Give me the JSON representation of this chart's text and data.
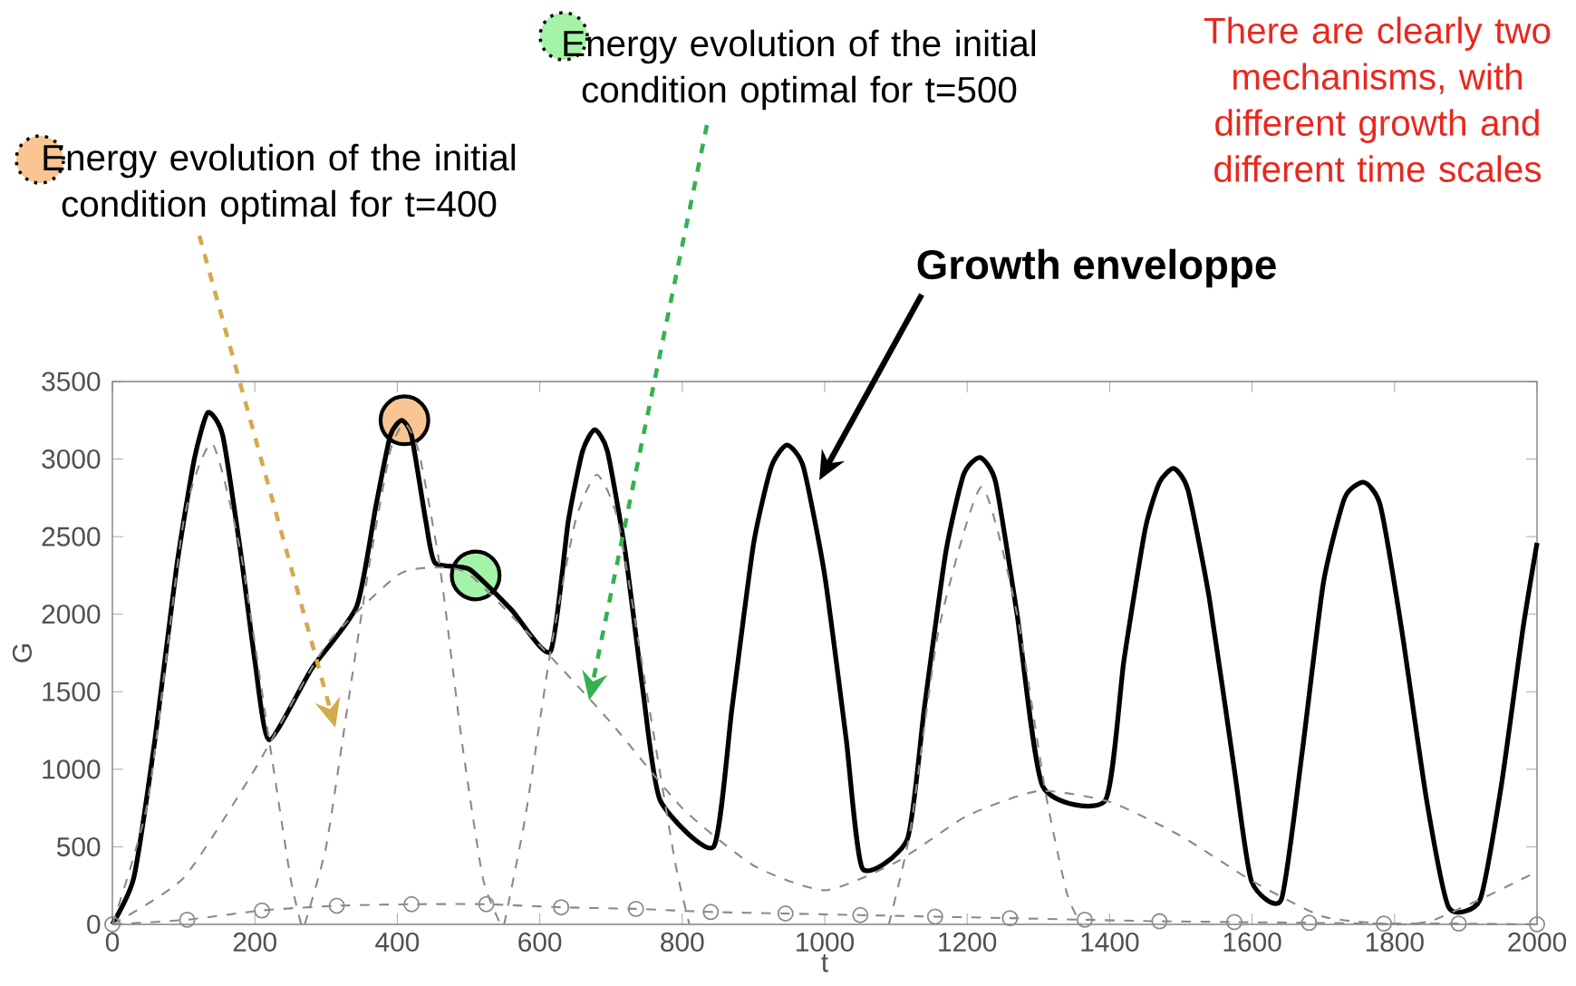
{
  "chart_data": {
    "type": "line",
    "xlabel": "t",
    "ylabel": "G",
    "xlim": [
      0,
      2000
    ],
    "ylim": [
      0,
      3500
    ],
    "xticks": [
      0,
      200,
      400,
      600,
      800,
      1000,
      1200,
      1400,
      1600,
      1800,
      2000
    ],
    "yticks": [
      0,
      500,
      1000,
      1500,
      2000,
      2500,
      3000,
      3500
    ],
    "grid": false,
    "series": [
      {
        "color": "#000000",
        "line_style": "solid",
        "x": [
          0,
          30,
          60,
          90,
          115,
          134,
          155,
          180,
          200,
          220,
          280,
          343,
          370,
          390,
          406,
          420,
          440,
          453,
          501,
          560,
          615,
          640,
          660,
          677,
          695,
          720,
          745,
          769,
          844,
          870,
          900,
          925,
          947,
          970,
          1000,
          1030,
          1053,
          1116,
          1140,
          1170,
          1195,
          1218,
          1240,
          1270,
          1306,
          1394,
          1420,
          1450,
          1470,
          1490,
          1510,
          1540,
          1575,
          1599,
          1641,
          1670,
          1700,
          1730,
          1757,
          1780,
          1810,
          1845,
          1876,
          1920,
          1950,
          1980,
          2000
        ],
        "values": [
          0,
          300,
          1200,
          2300,
          3000,
          3300,
          3150,
          2400,
          1700,
          1190,
          1650,
          2050,
          2700,
          3150,
          3250,
          3150,
          2600,
          2330,
          2290,
          2030,
          1760,
          2600,
          3050,
          3190,
          3050,
          2400,
          1500,
          800,
          500,
          1400,
          2450,
          2950,
          3090,
          2950,
          2250,
          1200,
          360,
          550,
          1400,
          2400,
          2900,
          3010,
          2850,
          2000,
          890,
          800,
          1700,
          2550,
          2850,
          2940,
          2800,
          2100,
          1000,
          280,
          160,
          1100,
          2200,
          2750,
          2850,
          2700,
          1900,
          800,
          110,
          160,
          900,
          1900,
          2460
        ]
      },
      {
        "color": "#8a8a8a",
        "line_style": "dashed",
        "x": [
          0,
          100,
          200,
          300,
          400,
          450,
          500,
          600,
          700,
          800,
          900,
          1000,
          1100,
          1200,
          1300,
          1400,
          1500,
          1600,
          1700,
          1800,
          1850,
          1900,
          1920,
          2000
        ],
        "values": [
          0,
          300,
          1000,
          1800,
          2250,
          2300,
          2260,
          1800,
          1300,
          750,
          380,
          220,
          400,
          700,
          860,
          790,
          570,
          280,
          50,
          0,
          20,
          120,
          160,
          340
        ]
      },
      {
        "color": "#8a8a8a",
        "line_style": "dashed",
        "x": [
          270,
          300,
          330,
          360,
          390,
          410,
          430,
          460,
          490,
          520,
          545
        ],
        "values": [
          0,
          500,
          1400,
          2300,
          3050,
          3230,
          3050,
          2300,
          1200,
          300,
          0
        ]
      },
      {
        "color": "#8a8a8a",
        "line_style": "dashed",
        "x": [
          0,
          50,
          100,
          140,
          180,
          220,
          250,
          265
        ],
        "values": [
          0,
          800,
          2600,
          3100,
          2400,
          1190,
          300,
          0
        ]
      },
      {
        "color": "#8a8a8a",
        "line_style": "dashed",
        "x": [
          550,
          580,
          615,
          650,
          680,
          710,
          750,
          790,
          810
        ],
        "values": [
          0,
          700,
          1760,
          2600,
          2900,
          2600,
          1500,
          400,
          0
        ]
      },
      {
        "color": "#8a8a8a",
        "line_style": "dashed",
        "x": [
          1090,
          1120,
          1160,
          1220,
          1270,
          1310,
          1340,
          1360
        ],
        "values": [
          0,
          600,
          1900,
          2820,
          2000,
          850,
          200,
          0
        ]
      },
      {
        "color": "#8a8a8a",
        "line_style": "dashed",
        "marker": "circle",
        "x": [
          0,
          105,
          210,
          315,
          420,
          525,
          630,
          735,
          840,
          945,
          1050,
          1155,
          1260,
          1365,
          1470,
          1575,
          1680,
          1785,
          1890,
          2000
        ],
        "values": [
          0,
          30,
          90,
          120,
          130,
          130,
          110,
          100,
          80,
          70,
          60,
          50,
          40,
          30,
          20,
          15,
          10,
          5,
          5,
          0
        ]
      },
      {
        "type": "scatter",
        "color": "#f9c592",
        "marker": "circle",
        "x": [
          410
        ],
        "values": [
          3250
        ]
      },
      {
        "type": "scatter",
        "color": "#a5f3a8",
        "marker": "circle",
        "x": [
          510
        ],
        "values": [
          2250
        ]
      }
    ],
    "annotations": [
      "Energy evolution of the initial condition optimal for t=400",
      "Energy evolution of the initial condition optimal for t=500",
      "**Growth enveloppe**",
      "There are clearly two mechanisms, with different growth and different time scales"
    ]
  }
}
